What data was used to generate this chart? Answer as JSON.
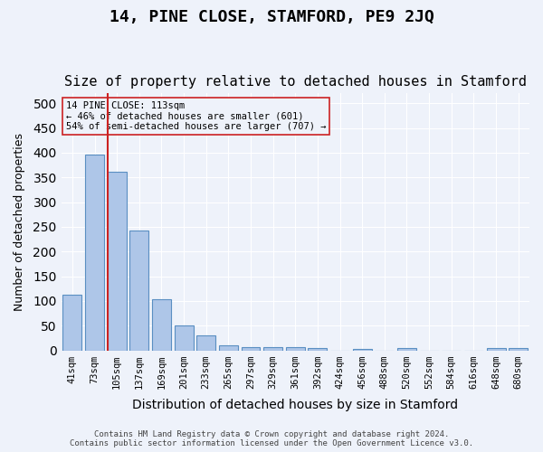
{
  "title": "14, PINE CLOSE, STAMFORD, PE9 2JQ",
  "subtitle": "Size of property relative to detached houses in Stamford",
  "xlabel": "Distribution of detached houses by size in Stamford",
  "ylabel": "Number of detached properties",
  "bar_labels": [
    "41sqm",
    "73sqm",
    "105sqm",
    "137sqm",
    "169sqm",
    "201sqm",
    "233sqm",
    "265sqm",
    "297sqm",
    "329sqm",
    "361sqm",
    "392sqm",
    "424sqm",
    "456sqm",
    "488sqm",
    "520sqm",
    "552sqm",
    "584sqm",
    "616sqm",
    "648sqm",
    "680sqm"
  ],
  "bar_values": [
    112,
    397,
    362,
    243,
    104,
    50,
    30,
    10,
    6,
    6,
    7,
    4,
    0,
    3,
    0,
    4,
    0,
    0,
    0,
    4,
    4
  ],
  "bar_color": "#aec6e8",
  "bar_edge_color": "#5a8fc2",
  "background_color": "#eef2fa",
  "grid_color": "#ffffff",
  "red_line_x": 1.575,
  "annotation_title": "14 PINE CLOSE: 113sqm",
  "annotation_line1": "← 46% of detached houses are smaller (601)",
  "annotation_line2": "54% of semi-detached houses are larger (707) →",
  "footer_line1": "Contains HM Land Registry data © Crown copyright and database right 2024.",
  "footer_line2": "Contains public sector information licensed under the Open Government Licence v3.0.",
  "ylim": [
    0,
    520
  ],
  "yticks": [
    0,
    50,
    100,
    150,
    200,
    250,
    300,
    350,
    400,
    450,
    500
  ],
  "title_fontsize": 13,
  "subtitle_fontsize": 11,
  "red_line_color": "#cc2222"
}
